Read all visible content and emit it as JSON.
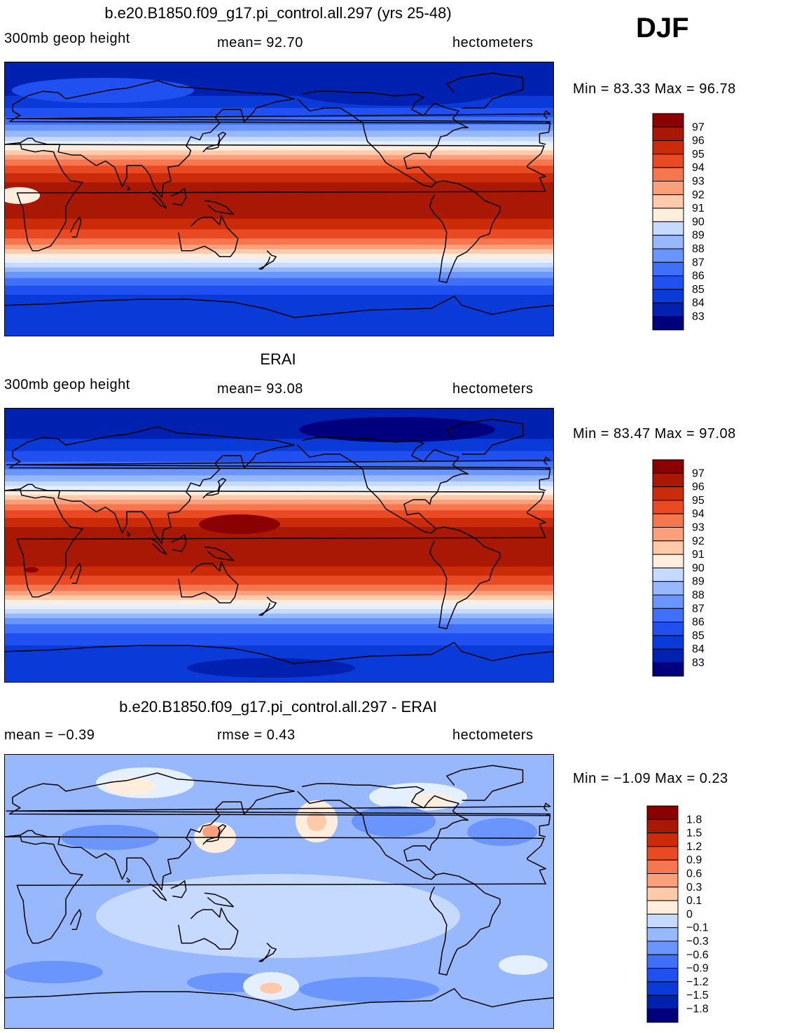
{
  "header": {
    "season": "DJF"
  },
  "panels": [
    {
      "title": "b.e20.B1850.f09_g17.pi_control.all.297 (yrs 25-48)",
      "left_label": "300mb geop height",
      "center_label": "mean=   92.70",
      "right_label": "hectometers",
      "minmax": "Min =   83.33  Max =   96.78",
      "colorbar_labels": [
        "97",
        "96",
        "95",
        "94",
        "93",
        "92",
        "91",
        "90",
        "89",
        "88",
        "87",
        "86",
        "85",
        "84",
        "83"
      ],
      "colors": {
        "diverging": [
          "#00007f",
          "#0020b0",
          "#0a3ad8",
          "#2050ef",
          "#3e70fa",
          "#6a95fd",
          "#98b8fe",
          "#c6daff",
          "#e4f0ff",
          "#ffeede",
          "#ffcaaa",
          "#fba07a",
          "#f5764f",
          "#e94a23",
          "#cc2b0a",
          "#a81805",
          "#8b0000"
        ]
      },
      "fields": {
        "peak_level_hm": 96.8,
        "trough_level_hm": 83.3
      }
    },
    {
      "title": "ERAI",
      "left_label": "300mb geop height",
      "center_label": "mean=   93.08",
      "right_label": "hectometers",
      "minmax": "Min =   83.47  Max =   97.08",
      "colorbar_labels": [
        "97",
        "96",
        "95",
        "94",
        "93",
        "92",
        "91",
        "90",
        "89",
        "88",
        "87",
        "86",
        "85",
        "84",
        "83"
      ],
      "colors": {
        "diverging": [
          "#00007f",
          "#0020b0",
          "#0a3ad8",
          "#2050ef",
          "#3e70fa",
          "#6a95fd",
          "#98b8fe",
          "#c6daff",
          "#e4f0ff",
          "#ffeede",
          "#ffcaaa",
          "#fba07a",
          "#f5764f",
          "#e94a23",
          "#cc2b0a",
          "#a81805",
          "#8b0000"
        ]
      },
      "fields": {
        "peak_level_hm": 97.1,
        "trough_level_hm": 83.5
      }
    },
    {
      "title": "b.e20.B1850.f09_g17.pi_control.all.297 - ERAI",
      "left_label": "mean =   −0.39",
      "center_label": "rmse =     0.43",
      "right_label": "hectometers",
      "minmax": "Min =   −1.09  Max =      0.23",
      "colorbar_labels": [
        "1.8",
        "1.5",
        "1.2",
        "0.9",
        "0.6",
        "0.3",
        "0.1",
        "0",
        "−0.1",
        "−0.3",
        "−0.6",
        "−0.9",
        "−1.2",
        "−1.5",
        "−1.8"
      ],
      "colors": {
        "diverging": [
          "#00007f",
          "#0020b0",
          "#0a3ad8",
          "#2050ef",
          "#3e70fa",
          "#6a95fd",
          "#98b8fe",
          "#c6daff",
          "#e4f0ff",
          "#ffeede",
          "#ffcaaa",
          "#fba07a",
          "#f5764f",
          "#e94a23",
          "#cc2b0a",
          "#a81805",
          "#8b0000"
        ]
      },
      "fields": {
        "min_hm": -1.09,
        "max_hm": 0.23
      }
    }
  ]
}
